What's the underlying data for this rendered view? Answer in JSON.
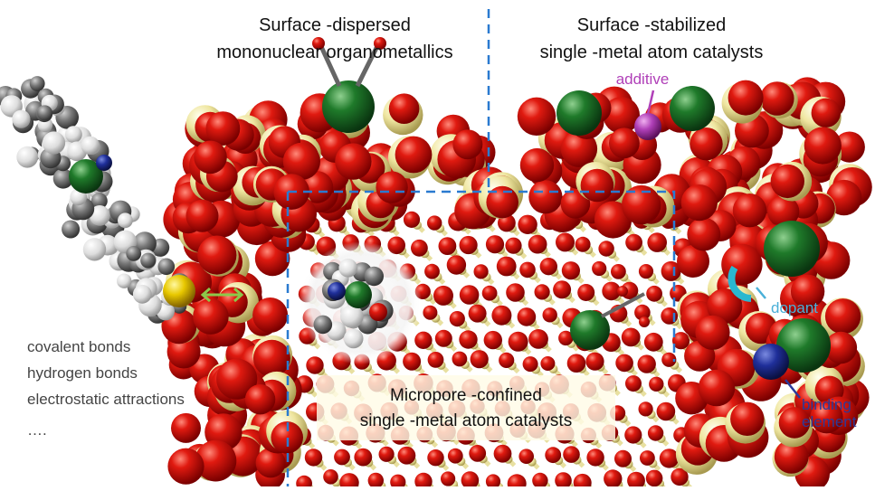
{
  "labels": {
    "surface_dispersed": [
      "Surface -dispersed",
      "mononuclear organometallics"
    ],
    "surface_stabilized": [
      "Surface -stabilized",
      "single -metal atom catalysts"
    ],
    "additive": "additive",
    "dopant": "dopant",
    "binding_element": [
      "binding",
      "element"
    ],
    "interactions": [
      "covalent  bonds",
      "hydrogen bonds",
      "electrostatic attractions",
      "…."
    ],
    "micropore_confined": [
      "Micropore -confined",
      "single -metal atom catalysts"
    ]
  }
}
